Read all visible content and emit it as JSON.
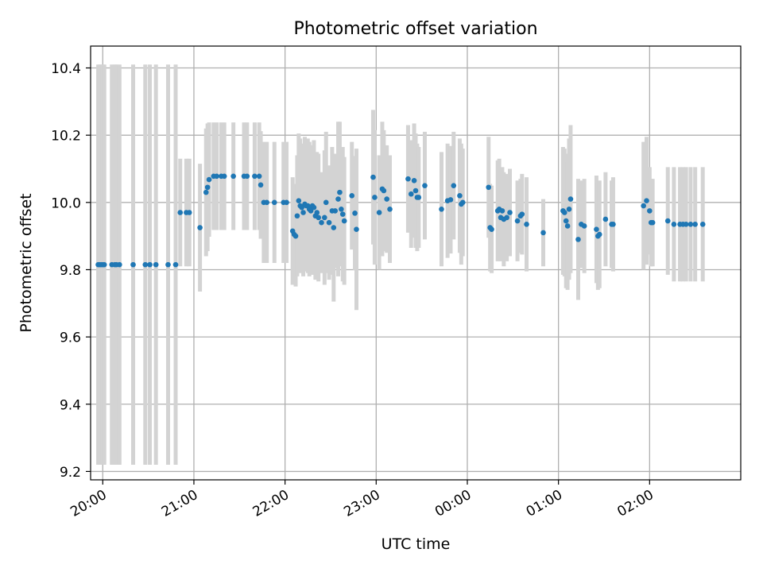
{
  "chart_data": {
    "type": "scatter",
    "title": "Photometric offset variation",
    "xlabel": "UTC time",
    "ylabel": "Photometric offset",
    "grid": true,
    "colors": {
      "points": "#1f77b4",
      "errorbars": "#d3d3d3",
      "grid": "#b0b0b0"
    },
    "xlim": [
      "19:52",
      "27:00"
    ],
    "ylim": [
      9.175,
      10.465
    ],
    "x_ticks": [
      {
        "value": "20:00",
        "label": "20:00"
      },
      {
        "value": "21:00",
        "label": "21:00"
      },
      {
        "value": "22:00",
        "label": "22:00"
      },
      {
        "value": "23:00",
        "label": "23:00"
      },
      {
        "value": "24:00",
        "label": "00:00"
      },
      {
        "value": "25:00",
        "label": "01:00"
      },
      {
        "value": "26:00",
        "label": "02:00"
      }
    ],
    "y_ticks": [
      {
        "value": 9.2,
        "label": "9.2"
      },
      {
        "value": 9.4,
        "label": "9.4"
      },
      {
        "value": 9.6,
        "label": "9.6"
      },
      {
        "value": 9.8,
        "label": "9.8"
      },
      {
        "value": 10.0,
        "label": "10.0"
      },
      {
        "value": 10.2,
        "label": "10.2"
      },
      {
        "value": 10.4,
        "label": "10.4"
      }
    ],
    "points": [
      {
        "x": "19:57",
        "y": 9.815,
        "err": 0.595
      },
      {
        "x": "19:58",
        "y": 9.815,
        "err": 0.595
      },
      {
        "x": "19:59",
        "y": 9.815,
        "err": 0.595
      },
      {
        "x": "20:00",
        "y": 9.815,
        "err": 0.595
      },
      {
        "x": "20:01",
        "y": 9.815,
        "err": 0.595
      },
      {
        "x": "20:06",
        "y": 9.815,
        "err": 0.595
      },
      {
        "x": "20:08",
        "y": 9.815,
        "err": 0.595
      },
      {
        "x": "20:09",
        "y": 9.815,
        "err": 0.595
      },
      {
        "x": "20:11",
        "y": 9.815,
        "err": 0.595
      },
      {
        "x": "20:20",
        "y": 9.815,
        "err": 0.595
      },
      {
        "x": "20:28",
        "y": 9.815,
        "err": 0.595
      },
      {
        "x": "20:31",
        "y": 9.815,
        "err": 0.595
      },
      {
        "x": "20:35",
        "y": 9.815,
        "err": 0.595
      },
      {
        "x": "20:43",
        "y": 9.815,
        "err": 0.595
      },
      {
        "x": "20:48",
        "y": 9.815,
        "err": 0.595
      },
      {
        "x": "20:51",
        "y": 9.97,
        "err": 0.16
      },
      {
        "x": "20:55",
        "y": 9.97,
        "err": 0.16
      },
      {
        "x": "20:57",
        "y": 9.97,
        "err": 0.16
      },
      {
        "x": "21:04",
        "y": 9.925,
        "err": 0.19
      },
      {
        "x": "21:08",
        "y": 10.03,
        "err": 0.19
      },
      {
        "x": "21:09",
        "y": 10.045,
        "err": 0.19
      },
      {
        "x": "21:10",
        "y": 10.068,
        "err": 0.17
      },
      {
        "x": "21:13",
        "y": 10.078,
        "err": 0.16
      },
      {
        "x": "21:15",
        "y": 10.078,
        "err": 0.16
      },
      {
        "x": "21:18",
        "y": 10.078,
        "err": 0.16
      },
      {
        "x": "21:20",
        "y": 10.078,
        "err": 0.16
      },
      {
        "x": "21:26",
        "y": 10.078,
        "err": 0.16
      },
      {
        "x": "21:33",
        "y": 10.078,
        "err": 0.16
      },
      {
        "x": "21:35",
        "y": 10.078,
        "err": 0.16
      },
      {
        "x": "21:40",
        "y": 10.078,
        "err": 0.16
      },
      {
        "x": "21:43",
        "y": 10.078,
        "err": 0.16
      },
      {
        "x": "21:44",
        "y": 10.052,
        "err": 0.16
      },
      {
        "x": "21:46",
        "y": 10.0,
        "err": 0.18
      },
      {
        "x": "21:48",
        "y": 10.0,
        "err": 0.18
      },
      {
        "x": "21:53",
        "y": 10.0,
        "err": 0.18
      },
      {
        "x": "21:59",
        "y": 10.0,
        "err": 0.18
      },
      {
        "x": "22:01",
        "y": 10.0,
        "err": 0.18
      },
      {
        "x": "22:05",
        "y": 9.915,
        "err": 0.16
      },
      {
        "x": "22:06",
        "y": 9.905,
        "err": 0.15
      },
      {
        "x": "22:07",
        "y": 9.9,
        "err": 0.15
      },
      {
        "x": "22:08",
        "y": 9.96,
        "err": 0.18
      },
      {
        "x": "22:09",
        "y": 10.005,
        "err": 0.2
      },
      {
        "x": "22:10",
        "y": 9.99,
        "err": 0.2
      },
      {
        "x": "22:11",
        "y": 9.985,
        "err": 0.19
      },
      {
        "x": "22:12",
        "y": 9.97,
        "err": 0.19
      },
      {
        "x": "22:13",
        "y": 9.995,
        "err": 0.2
      },
      {
        "x": "22:14",
        "y": 9.99,
        "err": 0.19
      },
      {
        "x": "22:15",
        "y": 9.99,
        "err": 0.2
      },
      {
        "x": "22:16",
        "y": 9.98,
        "err": 0.2
      },
      {
        "x": "22:17",
        "y": 9.975,
        "err": 0.19
      },
      {
        "x": "22:18",
        "y": 9.99,
        "err": 0.18
      },
      {
        "x": "22:19",
        "y": 9.985,
        "err": 0.2
      },
      {
        "x": "22:20",
        "y": 9.96,
        "err": 0.19
      },
      {
        "x": "22:21",
        "y": 9.97,
        "err": 0.18
      },
      {
        "x": "22:22",
        "y": 9.955,
        "err": 0.19
      },
      {
        "x": "22:24",
        "y": 9.94,
        "err": 0.15
      },
      {
        "x": "22:26",
        "y": 9.955,
        "err": 0.2
      },
      {
        "x": "22:27",
        "y": 10.0,
        "err": 0.21
      },
      {
        "x": "22:29",
        "y": 9.94,
        "err": 0.17
      },
      {
        "x": "22:31",
        "y": 9.975,
        "err": 0.19
      },
      {
        "x": "22:32",
        "y": 9.925,
        "err": 0.22
      },
      {
        "x": "22:33",
        "y": 9.975,
        "err": 0.17
      },
      {
        "x": "22:35",
        "y": 10.01,
        "err": 0.23
      },
      {
        "x": "22:36",
        "y": 10.03,
        "err": 0.21
      },
      {
        "x": "22:37",
        "y": 9.98,
        "err": 0.17
      },
      {
        "x": "22:38",
        "y": 9.965,
        "err": 0.2
      },
      {
        "x": "22:39",
        "y": 9.945,
        "err": 0.19
      },
      {
        "x": "22:44",
        "y": 10.02,
        "err": 0.16
      },
      {
        "x": "22:46",
        "y": 9.968,
        "err": 0.17
      },
      {
        "x": "22:47",
        "y": 9.92,
        "err": 0.24
      },
      {
        "x": "22:58",
        "y": 10.075,
        "err": 0.2
      },
      {
        "x": "22:59",
        "y": 10.015,
        "err": 0.2
      },
      {
        "x": "23:02",
        "y": 9.97,
        "err": 0.17
      },
      {
        "x": "23:04",
        "y": 10.04,
        "err": 0.2
      },
      {
        "x": "23:05",
        "y": 10.035,
        "err": 0.18
      },
      {
        "x": "23:07",
        "y": 10.01,
        "err": 0.16
      },
      {
        "x": "23:09",
        "y": 9.98,
        "err": 0.16
      },
      {
        "x": "23:21",
        "y": 10.07,
        "err": 0.16
      },
      {
        "x": "23:23",
        "y": 10.025,
        "err": 0.16
      },
      {
        "x": "23:25",
        "y": 10.065,
        "err": 0.17
      },
      {
        "x": "23:26",
        "y": 10.035,
        "err": 0.17
      },
      {
        "x": "23:27",
        "y": 10.015,
        "err": 0.16
      },
      {
        "x": "23:28",
        "y": 10.015,
        "err": 0.15
      },
      {
        "x": "23:32",
        "y": 10.05,
        "err": 0.16
      },
      {
        "x": "23:43",
        "y": 9.98,
        "err": 0.17
      },
      {
        "x": "23:47",
        "y": 10.005,
        "err": 0.17
      },
      {
        "x": "23:49",
        "y": 10.008,
        "err": 0.16
      },
      {
        "x": "23:51",
        "y": 10.05,
        "err": 0.16
      },
      {
        "x": "23:55",
        "y": 10.02,
        "err": 0.17
      },
      {
        "x": "23:56",
        "y": 9.995,
        "err": 0.18
      },
      {
        "x": "23:57",
        "y": 10.0,
        "err": 0.16
      },
      {
        "x": "24:14",
        "y": 10.045,
        "err": 0.15
      },
      {
        "x": "24:15",
        "y": 9.925,
        "err": 0.13
      },
      {
        "x": "24:16",
        "y": 9.92,
        "err": 0.13
      },
      {
        "x": "24:20",
        "y": 9.975,
        "err": 0.15
      },
      {
        "x": "24:21",
        "y": 9.98,
        "err": 0.15
      },
      {
        "x": "24:22",
        "y": 9.955,
        "err": 0.13
      },
      {
        "x": "24:23",
        "y": 9.975,
        "err": 0.13
      },
      {
        "x": "24:24",
        "y": 9.95,
        "err": 0.14
      },
      {
        "x": "24:26",
        "y": 9.955,
        "err": 0.13
      },
      {
        "x": "24:28",
        "y": 9.97,
        "err": 0.13
      },
      {
        "x": "24:33",
        "y": 9.945,
        "err": 0.12
      },
      {
        "x": "24:35",
        "y": 9.96,
        "err": 0.11
      },
      {
        "x": "24:36",
        "y": 9.965,
        "err": 0.12
      },
      {
        "x": "24:39",
        "y": 9.935,
        "err": 0.14
      },
      {
        "x": "24:50",
        "y": 9.91,
        "err": 0.1
      },
      {
        "x": "25:03",
        "y": 9.975,
        "err": 0.19
      },
      {
        "x": "25:04",
        "y": 9.97,
        "err": 0.19
      },
      {
        "x": "25:05",
        "y": 9.945,
        "err": 0.2
      },
      {
        "x": "25:06",
        "y": 9.93,
        "err": 0.19
      },
      {
        "x": "25:07",
        "y": 9.98,
        "err": 0.21
      },
      {
        "x": "25:08",
        "y": 10.01,
        "err": 0.22
      },
      {
        "x": "25:13",
        "y": 9.89,
        "err": 0.18
      },
      {
        "x": "25:15",
        "y": 9.935,
        "err": 0.13
      },
      {
        "x": "25:17",
        "y": 9.93,
        "err": 0.14
      },
      {
        "x": "25:25",
        "y": 9.92,
        "err": 0.16
      },
      {
        "x": "25:26",
        "y": 9.9,
        "err": 0.16
      },
      {
        "x": "25:27",
        "y": 9.905,
        "err": 0.16
      },
      {
        "x": "25:31",
        "y": 9.95,
        "err": 0.14
      },
      {
        "x": "25:35",
        "y": 9.935,
        "err": 0.13
      },
      {
        "x": "25:36",
        "y": 9.935,
        "err": 0.14
      },
      {
        "x": "25:56",
        "y": 9.99,
        "err": 0.19
      },
      {
        "x": "25:58",
        "y": 10.005,
        "err": 0.19
      },
      {
        "x": "26:00",
        "y": 9.975,
        "err": 0.13
      },
      {
        "x": "26:01",
        "y": 9.94,
        "err": 0.13
      },
      {
        "x": "26:02",
        "y": 9.94,
        "err": 0.13
      },
      {
        "x": "26:12",
        "y": 9.945,
        "err": 0.16
      },
      {
        "x": "26:16",
        "y": 9.935,
        "err": 0.17
      },
      {
        "x": "26:20",
        "y": 9.935,
        "err": 0.17
      },
      {
        "x": "26:22",
        "y": 9.935,
        "err": 0.17
      },
      {
        "x": "26:24",
        "y": 9.935,
        "err": 0.17
      },
      {
        "x": "26:27",
        "y": 9.935,
        "err": 0.17
      },
      {
        "x": "26:30",
        "y": 9.935,
        "err": 0.17
      },
      {
        "x": "26:35",
        "y": 9.935,
        "err": 0.17
      }
    ]
  }
}
